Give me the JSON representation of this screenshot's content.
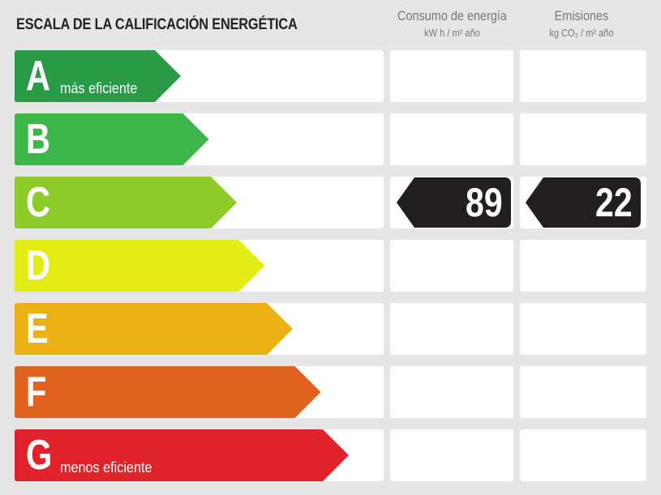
{
  "header": {
    "title": "ESCALA DE LA CALIFICACIÓN ENERGÉTICA",
    "consumo_label": "Consumo de energía",
    "consumo_unit": "kW h / m² año",
    "emisiones_label": "Emisiones",
    "emisiones_unit": "kg CO₂ / m² año"
  },
  "ratings": [
    {
      "letter": "A",
      "note": "más eficiente",
      "color": "#2a9a46"
    },
    {
      "letter": "B",
      "note": "",
      "color": "#3db64a"
    },
    {
      "letter": "C",
      "note": "",
      "color": "#8dcb2b"
    },
    {
      "letter": "D",
      "note": "",
      "color": "#e3ec14"
    },
    {
      "letter": "E",
      "note": "",
      "color": "#ebb014"
    },
    {
      "letter": "F",
      "note": "",
      "color": "#df621e"
    },
    {
      "letter": "G",
      "note": "menos eficiente",
      "color": "#e0232a"
    }
  ],
  "current": {
    "rating": "C",
    "consumo": "89",
    "emisiones": "22",
    "marker_color": "#231f20"
  }
}
